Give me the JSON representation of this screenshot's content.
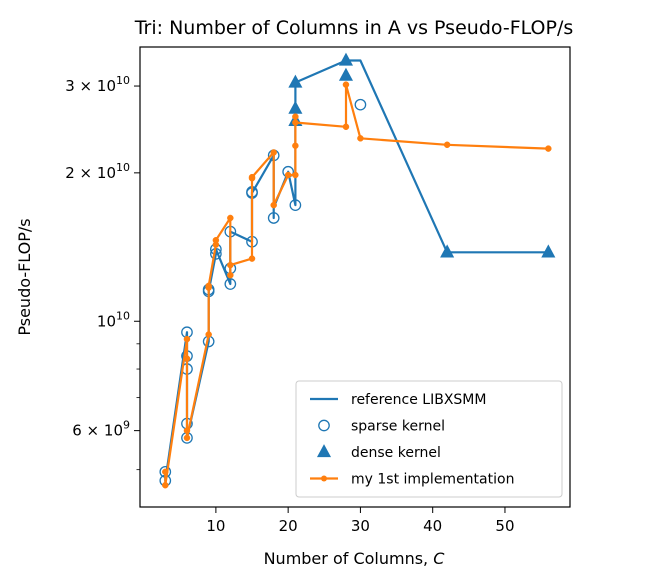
{
  "chart_data": {
    "type": "line",
    "title": "Tri: Number of Columns in A vs Pseudo-FLOP/s",
    "xlabel_text": "Number of Columns, ",
    "xlabel_var": "C",
    "ylabel": "Pseudo-FLOP/s",
    "xscale": "linear",
    "yscale": "log",
    "xlim": [
      -0.5,
      59
    ],
    "ylim": [
      4200000000.0,
      36000000000.0
    ],
    "xticks": [
      10,
      20,
      30,
      40,
      50
    ],
    "xtick_labels": [
      "10",
      "20",
      "30",
      "40",
      "50"
    ],
    "yticks_major": [
      6000000000.0,
      10000000000.0,
      20000000000.0,
      30000000000.0
    ],
    "ytick_labels": [
      {
        "base": "6 × 10",
        "exp": "9"
      },
      {
        "base": "10",
        "exp": "10"
      },
      {
        "base": "2 × 10",
        "exp": "10"
      },
      {
        "base": "3 × 10",
        "exp": "10"
      }
    ],
    "yticks_minor": [
      5000000000.0,
      7000000000.0,
      8000000000.0,
      9000000000.0
    ],
    "grid": false,
    "legend_position": "lower right",
    "colors": {
      "reference": "#1f77b4",
      "mine": "#ff7f0e"
    },
    "series": [
      {
        "name": "reference LIBXSMM",
        "style": "line",
        "x": [
          3,
          3,
          6,
          6,
          6,
          6,
          6,
          9,
          9,
          9,
          10,
          10,
          12,
          12,
          12,
          15,
          15,
          15,
          18,
          18,
          18,
          20,
          21,
          21,
          21,
          21,
          21,
          28,
          28,
          30,
          42,
          56
        ],
        "y": [
          4950000000.0,
          4750000000.0,
          9500000000.0,
          8500000000.0,
          8000000000.0,
          6200000000.0,
          5800000000.0,
          9100000000.0,
          11600000000.0,
          11500000000.0,
          13700000000.0,
          14000000000.0,
          11900000000.0,
          12800000000.0,
          15200000000.0,
          14500000000.0,
          18300000000.0,
          18200000000.0,
          21700000000.0,
          16200000000.0,
          17000000000.0,
          20100000000.0,
          17200000000.0,
          19500000000.0,
          25500000000.0,
          27000000000.0,
          30500000000.0,
          33800000000.0,
          33800000000.0,
          33800000000.0,
          13800000000.0,
          13800000000.0
        ]
      },
      {
        "name": "sparse kernel",
        "style": "open-circle",
        "x": [
          3,
          3,
          6,
          6,
          6,
          6,
          6,
          9,
          9,
          9,
          10,
          10,
          12,
          12,
          12,
          15,
          15,
          15,
          18,
          18,
          20,
          21,
          30
        ],
        "y": [
          4950000000.0,
          4750000000.0,
          9500000000.0,
          8500000000.0,
          8000000000.0,
          6200000000.0,
          5800000000.0,
          9100000000.0,
          11600000000.0,
          11500000000.0,
          13700000000.0,
          14000000000.0,
          11900000000.0,
          12800000000.0,
          15200000000.0,
          14500000000.0,
          18300000000.0,
          18200000000.0,
          21700000000.0,
          16200000000.0,
          20100000000.0,
          17200000000.0,
          27500000000.0
        ]
      },
      {
        "name": "dense kernel",
        "style": "triangle",
        "x": [
          21,
          21,
          21,
          28,
          28,
          42,
          56
        ],
        "y": [
          30500000000.0,
          27000000000.0,
          25500000000.0,
          33800000000.0,
          31500000000.0,
          13800000000.0,
          13800000000.0
        ]
      },
      {
        "name": "my 1st implementation",
        "style": "line-dot",
        "x": [
          3,
          3,
          6,
          6,
          6,
          6,
          9,
          9,
          9,
          10,
          10,
          12,
          12,
          12,
          15,
          15,
          15,
          18,
          18,
          20,
          21,
          21,
          21,
          21,
          28,
          28,
          30,
          42,
          56
        ],
        "y": [
          4950000000.0,
          4650000000.0,
          9200000000.0,
          8400000000.0,
          6000000000.0,
          5800000000.0,
          9400000000.0,
          11700000000.0,
          11800000000.0,
          14300000000.0,
          14600000000.0,
          16200000000.0,
          12400000000.0,
          13000000000.0,
          13400000000.0,
          19500000000.0,
          19600000000.0,
          22000000000.0,
          17200000000.0,
          19800000000.0,
          19800000000.0,
          22700000000.0,
          26000000000.0,
          25300000000.0,
          24800000000.0,
          30200000000.0,
          23500000000.0,
          22800000000.0,
          22400000000.0
        ]
      }
    ]
  }
}
